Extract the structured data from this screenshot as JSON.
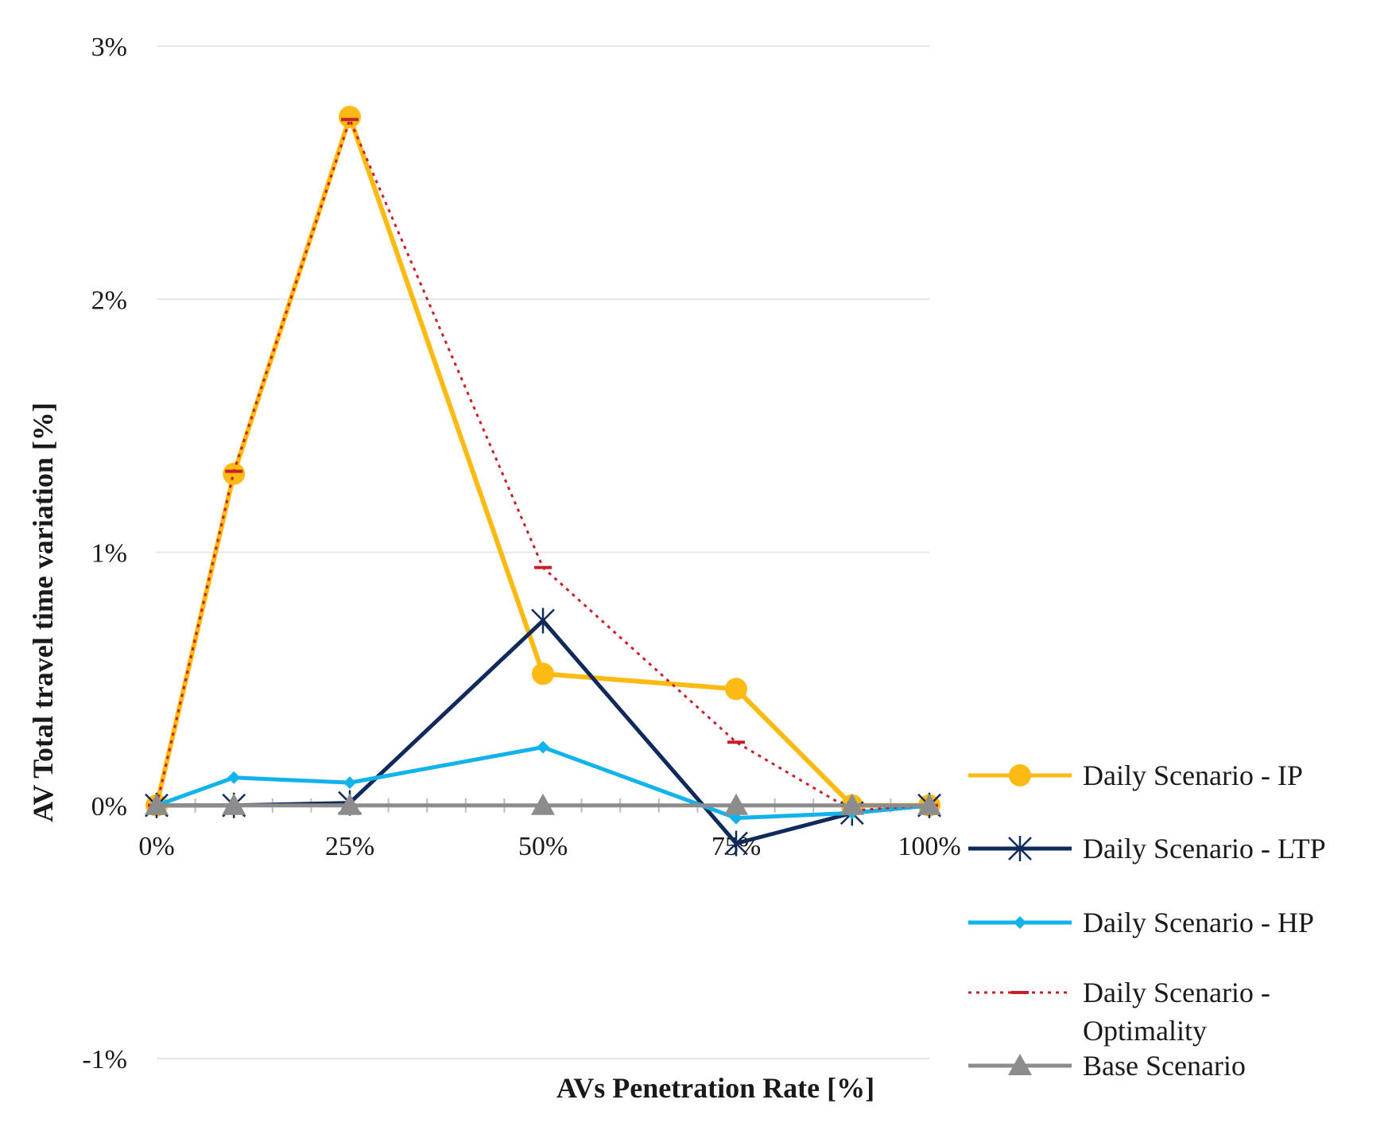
{
  "chart_data": {
    "type": "line",
    "title": "",
    "xlabel": "AVs Penetration Rate [%]",
    "ylabel": "AV Total travel time variation [%]",
    "x": [
      0,
      10,
      25,
      50,
      75,
      90,
      100
    ],
    "x_tick_values": [
      0,
      25,
      50,
      75,
      100
    ],
    "x_tick_labels": [
      "0%",
      "25%",
      "50%",
      "75%",
      "100%"
    ],
    "xlim": [
      0,
      100
    ],
    "y_tick_values": [
      3,
      2,
      1,
      0,
      -1
    ],
    "y_tick_labels": [
      "3%",
      "2%",
      "1%",
      "0%",
      "-1%"
    ],
    "ylim": [
      -1,
      3
    ],
    "grid": true,
    "legend_position": "right",
    "series": [
      {
        "name": "Daily Scenario - IP",
        "color": "#FDBA12",
        "style": "solid",
        "marker": "circle",
        "values": [
          0,
          1.31,
          2.72,
          0.52,
          0.46,
          0,
          0
        ]
      },
      {
        "name": "Daily Scenario - LTP",
        "color": "#102A5C",
        "style": "solid",
        "marker": "asterisk",
        "values": [
          0,
          0,
          0.01,
          0.73,
          -0.15,
          -0.03,
          0
        ]
      },
      {
        "name": "Daily Scenario - HP",
        "color": "#12B2EA",
        "style": "solid",
        "marker": "diamond",
        "values": [
          0,
          0.11,
          0.09,
          0.23,
          -0.05,
          -0.03,
          0
        ]
      },
      {
        "name": "Daily Scenario - Optimality",
        "name_lines": [
          "Daily Scenario -",
          "Optimality"
        ],
        "color": "#C8202A",
        "style": "dotted",
        "marker": "dash",
        "values": [
          0,
          1.32,
          2.71,
          0.94,
          0.25,
          -0.02,
          0
        ]
      },
      {
        "name": "Base Scenario",
        "color": "#8C8C8C",
        "style": "solid",
        "marker": "triangle",
        "values": [
          0,
          0,
          0,
          0,
          0,
          0,
          0
        ]
      }
    ]
  }
}
